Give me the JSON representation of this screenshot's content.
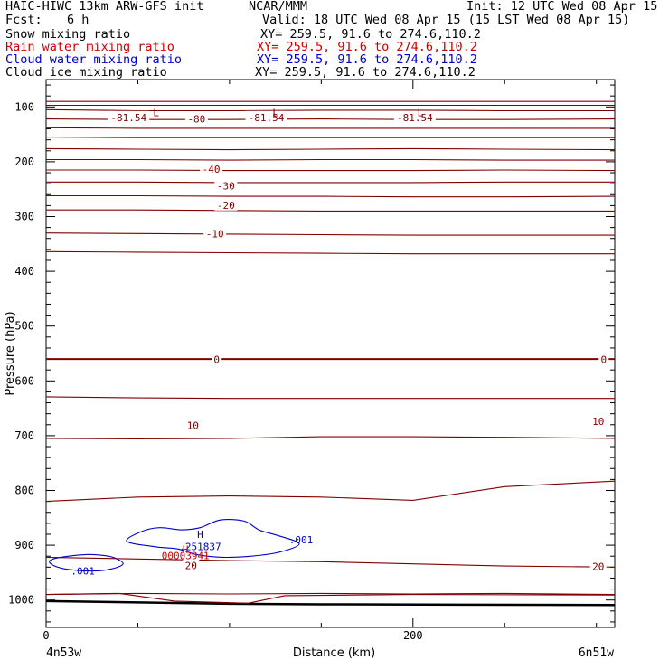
{
  "header": {
    "title": "HAIC-HIWC 13km ARW-GFS init",
    "agency": "NCAR/MMM",
    "init": "Init: 12 UTC Wed 08 Apr 15",
    "fcst_label": "Fcst:",
    "fcst_value": "6 h",
    "valid": "Valid: 18 UTC Wed 08 Apr 15 (15 LST Wed 08 Apr 15)"
  },
  "fields": [
    {
      "name": "Snow mixing ratio",
      "xy": "XY= 259.5, 91.6 to 274.6,110.2",
      "color": "#000000"
    },
    {
      "name": "Rain water mixing ratio",
      "xy": "XY= 259.5, 91.6 to 274.6,110.2",
      "color": "#cc0000"
    },
    {
      "name": "Cloud water mixing ratio",
      "xy": "XY= 259.5, 91.6 to 274.6,110.2",
      "color": "#0000cc"
    },
    {
      "name": "Cloud ice mixing ratio",
      "xy": "XY= 259.5, 91.6 to 274.6,110.2",
      "color": "#000000"
    }
  ],
  "chart_data": {
    "type": "cross-section contour",
    "xlabel": "Distance (km)",
    "ylabel": "Pressure (hPa)",
    "xlim": [
      0,
      310
    ],
    "ylim": [
      1050,
      50
    ],
    "x_ticks": [
      {
        "value": 0,
        "label": "0"
      },
      {
        "value": 200,
        "label": "200"
      }
    ],
    "x_minor_step": 50,
    "y_ticks": [
      100,
      200,
      300,
      400,
      500,
      600,
      700,
      800,
      900,
      1000
    ],
    "y_minor_step": 20,
    "endpoint_labels": {
      "left": "4n53w",
      "right": "6n51w"
    },
    "temperature_contours": {
      "color": "#800000",
      "levels_shown": [
        -81.54,
        -80,
        -40,
        -30,
        -20,
        -10,
        0,
        10,
        20
      ],
      "lines": [
        {
          "y": [
            90,
            90,
            90,
            90,
            90,
            90,
            90
          ]
        },
        {
          "y": [
            97,
            97,
            97,
            97,
            97,
            97,
            97
          ]
        },
        {
          "y": [
            105,
            107,
            107,
            106,
            106,
            107,
            107
          ]
        },
        {
          "y": [
            122,
            123,
            123,
            122,
            123,
            123,
            122
          ]
        },
        {
          "y": [
            138,
            139,
            139,
            139,
            139,
            139,
            139
          ]
        },
        {
          "y": [
            155,
            156,
            156,
            156,
            156,
            156,
            156
          ]
        },
        {
          "y": [
            176,
            177,
            178,
            177,
            176,
            177,
            178
          ]
        },
        {
          "y": [
            196,
            196,
            197,
            196,
            196,
            197,
            197
          ]
        },
        {
          "y": [
            215,
            215,
            216,
            216,
            216,
            215,
            216
          ]
        },
        {
          "y": [
            237,
            237,
            238,
            238,
            238,
            237,
            237
          ]
        },
        {
          "y": [
            262,
            262,
            263,
            263,
            264,
            264,
            263
          ]
        },
        {
          "y": [
            288,
            288,
            289,
            290,
            290,
            290,
            290
          ]
        },
        {
          "y": [
            330,
            331,
            332,
            333,
            334,
            334,
            334
          ]
        },
        {
          "y": [
            364,
            365,
            366,
            367,
            368,
            368,
            368
          ]
        },
        {
          "y": [
            560,
            560,
            560,
            560,
            560,
            560,
            560
          ]
        },
        {
          "y": [
            629,
            631,
            632,
            632,
            632,
            632,
            632
          ]
        },
        {
          "y": [
            705,
            706,
            705,
            702,
            702,
            703,
            705
          ]
        },
        {
          "y": [
            820,
            812,
            810,
            812,
            818,
            793,
            783
          ]
        },
        {
          "y": [
            922,
            925,
            928,
            930,
            934,
            938,
            940
          ]
        },
        {
          "y": [
            990,
            988,
            989,
            988,
            989,
            988,
            990
          ]
        }
      ],
      "labels": [
        {
          "text": "-81.54",
          "x": 45,
          "p": 119
        },
        {
          "text": "-80",
          "x": 82,
          "p": 122
        },
        {
          "text": "-81.54",
          "x": 120,
          "p": 119
        },
        {
          "text": "-81.54",
          "x": 201,
          "p": 119
        },
        {
          "text": "-40",
          "x": 90,
          "p": 213
        },
        {
          "text": "-30",
          "x": 98,
          "p": 244
        },
        {
          "text": "-20",
          "x": 98,
          "p": 279
        },
        {
          "text": "-10",
          "x": 92,
          "p": 331
        },
        {
          "text": "0",
          "x": 93,
          "p": 561
        },
        {
          "text": "0",
          "x": 304,
          "p": 561
        },
        {
          "text": "10",
          "x": 80,
          "p": 681
        },
        {
          "text": "10",
          "x": 301,
          "p": 674
        },
        {
          "text": "20",
          "x": 79,
          "p": 937
        },
        {
          "text": "20",
          "x": 301,
          "p": 939
        }
      ],
      "lows": [
        {
          "text": "L",
          "x": 60,
          "p": 97
        },
        {
          "text": "L",
          "x": 125,
          "p": 97
        },
        {
          "text": "L",
          "x": 204,
          "p": 97
        }
      ]
    },
    "cloud_water_contours": {
      "color": "#0000cc",
      "level": ".001",
      "max_label": {
        "text": "H",
        "value": ".251837",
        "x": 84,
        "p": 880
      }
    },
    "rain_water": {
      "color": "#cc0000",
      "max_label": {
        "text": "H",
        "value": "00003941",
        "x": 76,
        "p": 907
      }
    },
    "ground": {
      "x": [
        0,
        100,
        150,
        310
      ],
      "p": [
        1002,
        1007,
        1008,
        1009
      ]
    }
  }
}
